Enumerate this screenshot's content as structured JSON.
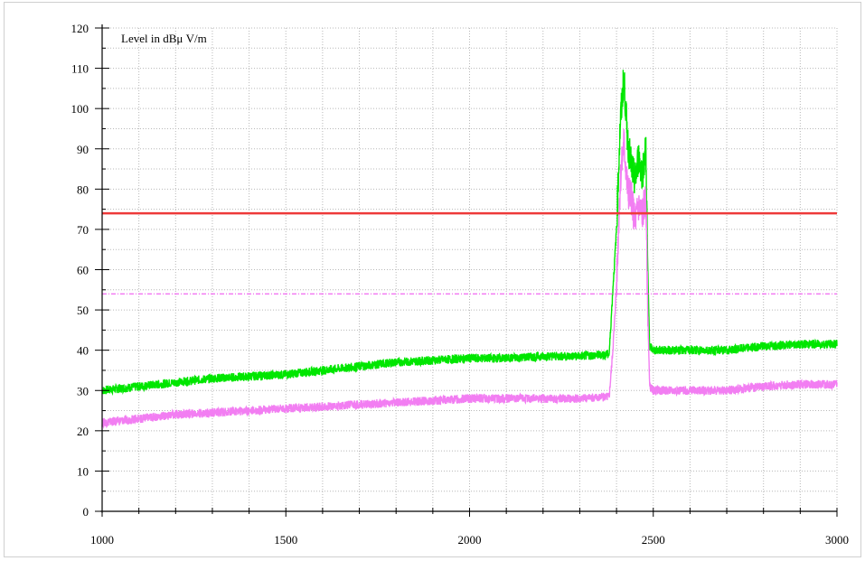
{
  "chart_data": {
    "type": "line",
    "annotation_label": "Level in dBμ V/m",
    "x_range": [
      1000,
      3000
    ],
    "y_range": [
      0,
      120
    ],
    "x_ticks": [
      1000,
      1500,
      2000,
      2500,
      3000
    ],
    "y_ticks": [
      0,
      10,
      20,
      30,
      40,
      50,
      60,
      70,
      80,
      90,
      100,
      110,
      120
    ],
    "grid": true,
    "series": [
      {
        "color": "#00e600",
        "style": "line",
        "x": [
          1000,
          1100,
          1200,
          1300,
          1400,
          1500,
          1600,
          1700,
          1800,
          1900,
          2000,
          2100,
          2200,
          2300,
          2380,
          2390,
          2400,
          2410,
          2420,
          2430,
          2440,
          2450,
          2460,
          2470,
          2480,
          2485,
          2490,
          2500,
          2600,
          2700,
          2800,
          2900,
          3000
        ],
        "y": [
          30,
          31,
          32,
          33,
          33.5,
          34,
          35,
          36,
          37,
          37.5,
          38,
          38,
          38.5,
          38.5,
          39,
          55,
          70,
          96,
          108,
          92,
          86,
          82,
          88,
          84,
          90,
          60,
          41,
          40,
          40,
          40,
          41,
          41.5,
          41.5
        ]
      },
      {
        "color": "#f27ef2",
        "style": "line",
        "x": [
          1000,
          1100,
          1200,
          1300,
          1400,
          1500,
          1600,
          1700,
          1800,
          1900,
          2000,
          2100,
          2200,
          2300,
          2380,
          2390,
          2400,
          2410,
          2420,
          2430,
          2440,
          2450,
          2460,
          2470,
          2480,
          2485,
          2490,
          2500,
          2600,
          2700,
          2800,
          2900,
          3000
        ],
        "y": [
          22,
          23,
          24,
          24.5,
          25,
          25.5,
          26,
          26.5,
          27,
          27.5,
          28,
          28,
          28,
          28,
          28.5,
          40,
          56,
          82,
          92,
          80,
          78,
          72,
          76,
          74,
          78,
          50,
          31,
          30,
          30,
          30,
          31,
          31.5,
          31.5
        ]
      },
      {
        "color": "#ee3a3a",
        "style": "solid-limit",
        "x": [
          1000,
          3000
        ],
        "y": [
          74,
          74
        ]
      },
      {
        "color": "#ee44ee",
        "style": "dash-dot-limit",
        "x": [
          1000,
          3000
        ],
        "y": [
          54,
          54
        ]
      }
    ]
  }
}
